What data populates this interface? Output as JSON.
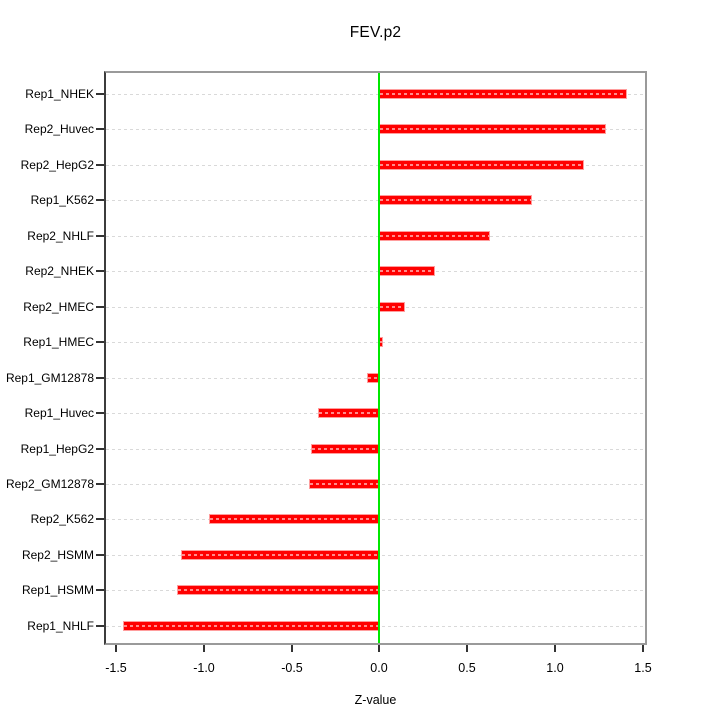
{
  "chart_data": {
    "type": "bar",
    "orientation": "horizontal",
    "title": "FEV.p2",
    "xlabel": "Z-value",
    "ylabel": "",
    "categories": [
      "Rep1_NHEK",
      "Rep2_Huvec",
      "Rep2_HepG2",
      "Rep1_K562",
      "Rep2_NHLF",
      "Rep2_NHEK",
      "Rep2_HMEC",
      "Rep1_HMEC",
      "Rep1_GM12878",
      "Rep1_Huvec",
      "Rep1_HepG2",
      "Rep2_GM12878",
      "Rep2_K562",
      "Rep2_HSMM",
      "Rep1_HSMM",
      "Rep1_NHLF"
    ],
    "values": [
      1.41,
      1.29,
      1.17,
      0.87,
      0.63,
      0.32,
      0.15,
      0.02,
      -0.07,
      -0.35,
      -0.39,
      -0.4,
      -0.97,
      -1.13,
      -1.15,
      -1.46
    ],
    "x_ticks": [
      -1.5,
      -1.0,
      -0.5,
      0.0,
      0.5,
      1.0,
      1.5
    ],
    "x_tick_labels": [
      "-1.5",
      "-1.0",
      "-0.5",
      "0.0",
      "0.5",
      "1.0",
      "1.5"
    ],
    "xlim": [
      -1.57,
      1.52
    ],
    "grid": true,
    "legend": "none",
    "colors": {
      "bar_fill": "#ff0000",
      "bar_border": "#ff9d9d",
      "zero_line": "#00e800",
      "gridline": "#d9d9d9",
      "box_border": "#9a9a9a",
      "left_axis": "#3c3c3c",
      "tick": "#333333",
      "text": "#000000"
    }
  }
}
